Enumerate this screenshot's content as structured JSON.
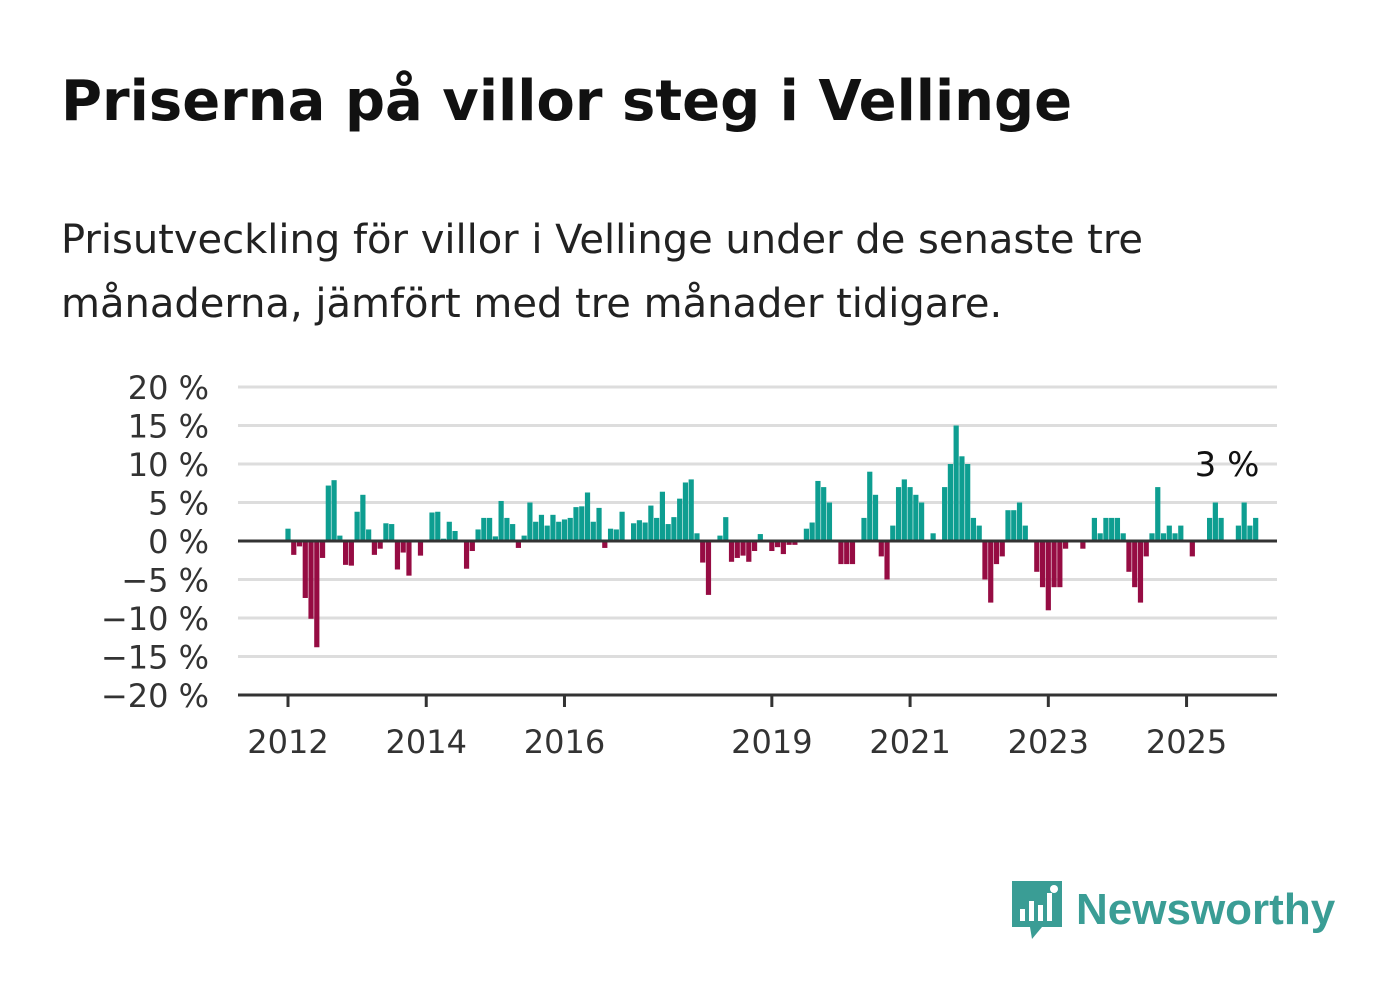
{
  "title": "Priserna på villor steg i Vellinge",
  "subtitle": "Prisutveckling för villor i Vellinge under de senaste tre månaderna, jämfört med tre månader tidigare.",
  "brand": {
    "name": "Newsworthy",
    "icon": "bar-chart-speech-bubble-icon",
    "color": "#3a9d95"
  },
  "colors": {
    "positive": "#0e9e91",
    "negative": "#960c43",
    "grid": "#dddddd",
    "axis": "#333333"
  },
  "chart_data": {
    "type": "bar",
    "x_unit": "month",
    "start": "2012-01",
    "y_unit": "%",
    "ylim": [
      -20,
      20
    ],
    "yticks": [
      20,
      15,
      10,
      5,
      0,
      -5,
      -10,
      -15,
      -20
    ],
    "ytick_labels": [
      "20 %",
      "15 %",
      "10 %",
      "5 %",
      "0 %",
      "−5 %",
      "−10 %",
      "−15 %",
      "−20 %"
    ],
    "xticks": [
      "2012",
      "2014",
      "2016",
      "2019",
      "2021",
      "2023",
      "2025"
    ],
    "annotation": {
      "label": "3 %",
      "value": 3
    },
    "values": [
      1.6,
      -1.8,
      -0.7,
      -7.4,
      -10.1,
      -13.8,
      -2.2,
      7.2,
      7.9,
      0.7,
      -3.1,
      -3.2,
      3.8,
      6.0,
      1.5,
      -1.8,
      -1.0,
      2.3,
      2.2,
      -3.7,
      -1.5,
      -4.5,
      0,
      -1.9,
      0,
      3.7,
      3.8,
      0.3,
      2.5,
      1.3,
      0,
      -3.6,
      -1.3,
      1.5,
      3.0,
      3.0,
      0.6,
      5.2,
      3.0,
      2.2,
      -0.9,
      0.7,
      5.0,
      2.5,
      3.4,
      2.0,
      3.4,
      2.5,
      2.8,
      3.0,
      4.4,
      4.5,
      6.3,
      2.5,
      4.3,
      -0.9,
      1.6,
      1.5,
      3.8,
      0,
      2.3,
      2.7,
      2.4,
      4.6,
      3.0,
      6.4,
      2.2,
      3.1,
      5.5,
      7.6,
      8.0,
      1.0,
      -2.8,
      -7.0,
      0,
      0.7,
      3.1,
      -2.7,
      -2.2,
      -1.9,
      -2.7,
      -1.3,
      0.9,
      0,
      -1.3,
      -0.8,
      -1.7,
      -0.5,
      -0.5,
      0,
      1.6,
      2.4,
      7.8,
      7.0,
      5.0,
      0,
      -3.0,
      -3.0,
      -3.0,
      0,
      3.0,
      9.0,
      6.0,
      -2.0,
      -5.0,
      2.0,
      7.0,
      8.0,
      7.0,
      6.0,
      5.0,
      0,
      1.0,
      0,
      7.0,
      10.0,
      15.0,
      11.0,
      10.0,
      3.0,
      2.0,
      -5.0,
      -8.0,
      -3.0,
      -2.0,
      4.0,
      4.0,
      5.0,
      2.0,
      0,
      -4.0,
      -6.0,
      -9.0,
      -6.0,
      -6.0,
      -1.0,
      0,
      0,
      -1.0,
      0,
      3.0,
      1.0,
      3.0,
      3.0,
      3.0,
      1.0,
      -4.0,
      -6.0,
      -8.0,
      -2.0,
      1.0,
      7.0,
      1.0,
      2.0,
      1.0,
      2.0,
      0,
      -2.0,
      0,
      0,
      3.0,
      5.0,
      3.0,
      0,
      0,
      2.0,
      5.0,
      2.0,
      3.0
    ]
  }
}
